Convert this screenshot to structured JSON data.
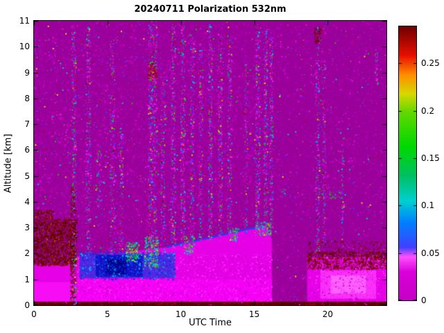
{
  "chart_data": {
    "type": "heatmap",
    "title": "20240711 Polarization 532nm",
    "xlabel": "UTC Time",
    "ylabel": "Altitude [km]",
    "x_range": [
      0,
      24
    ],
    "y_range": [
      0,
      11
    ],
    "x_ticks": [
      0,
      5,
      10,
      15,
      20
    ],
    "x_tick_labels": [
      "0",
      "5",
      "10",
      "15",
      "20"
    ],
    "y_ticks": [
      0,
      1,
      2,
      3,
      4,
      5,
      6,
      7,
      8,
      9,
      10,
      11
    ],
    "y_tick_labels": [
      "0",
      "1",
      "2",
      "3",
      "4",
      "5",
      "6",
      "7",
      "8",
      "9",
      "10",
      "11"
    ],
    "colorbar": {
      "min": 0,
      "max": 0.2889,
      "ticks": [
        0,
        0.05,
        0.1,
        0.15,
        0.2,
        0.25
      ],
      "tick_labels": [
        "0",
        "0.05",
        "0.1",
        "0.15",
        "0.2",
        "0.25"
      ]
    },
    "colormap_stops": [
      [
        0.0,
        "#C400C4"
      ],
      [
        0.03,
        "#DA00DA"
      ],
      [
        0.046,
        "#FF50FF"
      ],
      [
        0.056,
        "#4040FF"
      ],
      [
        0.082,
        "#0080FF"
      ],
      [
        0.105,
        "#00D0D0"
      ],
      [
        0.132,
        "#00C060"
      ],
      [
        0.162,
        "#00D800"
      ],
      [
        0.198,
        "#60D800"
      ],
      [
        0.218,
        "#D8D800"
      ],
      [
        0.238,
        "#FF8C00"
      ],
      [
        0.258,
        "#E81000"
      ],
      [
        0.2889,
        "#6E0000"
      ]
    ],
    "base_color": "#9A009A",
    "seed": 20240711,
    "palettes": {
      "noise": [
        [
          "#AE00AE",
          0.45
        ],
        [
          "#C400C4",
          0.25
        ],
        [
          "#E000E0",
          0.12
        ],
        [
          "#FF00FF",
          0.06
        ],
        [
          "#4040FF",
          0.04
        ],
        [
          "#00C8C8",
          0.025
        ],
        [
          "#00C800",
          0.02
        ],
        [
          "#B00000",
          0.02
        ],
        [
          "#E0E000",
          0.015
        ]
      ],
      "streak": [
        [
          "#D000D0",
          0.3
        ],
        [
          "#FF20FF",
          0.15
        ],
        [
          "#4040FF",
          0.18
        ],
        [
          "#00A0FF",
          0.08
        ],
        [
          "#00D0D0",
          0.08
        ],
        [
          "#00C800",
          0.08
        ],
        [
          "#D0D000",
          0.04
        ],
        [
          "#FF8000",
          0.03
        ],
        [
          "#C00000",
          0.04
        ],
        [
          "#700000",
          0.02
        ]
      ],
      "maroon": [
        [
          "#600000",
          0.45
        ],
        [
          "#7A0A00",
          0.25
        ],
        [
          "#8B1500",
          0.12
        ],
        [
          "#4A0000",
          0.1
        ],
        [
          "#A03000",
          0.05
        ],
        [
          "#C05000",
          0.03
        ]
      ],
      "maroonHot": [
        [
          "#7A0000",
          0.35
        ],
        [
          "#A00000",
          0.25
        ],
        [
          "#D03000",
          0.2
        ],
        [
          "#FF6000",
          0.1
        ],
        [
          "#500000",
          0.1
        ]
      ],
      "cyanGreen": [
        [
          "#00C8E0",
          0.35
        ],
        [
          "#00E0A0",
          0.2
        ],
        [
          "#00C800",
          0.2
        ],
        [
          "#A0E000",
          0.1
        ],
        [
          "#E0E000",
          0.08
        ],
        [
          "#FF8000",
          0.07
        ]
      ],
      "layerTex": [
        [
          "#FF30FF",
          0.5
        ],
        [
          "#D800D8",
          0.3
        ],
        [
          "#C000C0",
          0.2
        ]
      ],
      "blueTex": [
        [
          "#2020E0",
          0.4
        ],
        [
          "#0040FF",
          0.3
        ],
        [
          "#00A0FF",
          0.15
        ],
        [
          "#00D0D0",
          0.15
        ]
      ],
      "strip": [
        [
          "#3A0000",
          0.4
        ],
        [
          "#7A0000",
          0.3
        ],
        [
          "#A00000",
          0.2
        ],
        [
          "#FF00FF",
          0.1
        ]
      ],
      "dots": [
        [
          "#00C800",
          0.3
        ],
        [
          "#00C8C8",
          0.25
        ],
        [
          "#D000D0",
          0.25
        ],
        [
          "#4040FF",
          0.2
        ]
      ]
    },
    "noise": [
      {
        "x0": 0,
        "x1": 24,
        "y0": 0,
        "y1": 11,
        "palette": "noise",
        "count": 5200
      },
      {
        "x0": 2.5,
        "x1": 16.3,
        "y0": 2,
        "y1": 10.9,
        "palette": "noise",
        "count": 5200
      },
      {
        "x0": 0,
        "x1": 2.5,
        "y0": 3.4,
        "y1": 10.5,
        "palette": "noise",
        "count": 900
      },
      {
        "x0": 16.3,
        "x1": 24,
        "y0": 0.2,
        "y1": 10.9,
        "palette": "noise",
        "count": 1500
      }
    ],
    "features": [
      {
        "type": "rect",
        "x0": 0,
        "x1": 2.9,
        "y0": 0,
        "y1": 1.6,
        "color": "#E600E6"
      },
      {
        "type": "rect",
        "x0": 0,
        "x1": 2.9,
        "y0": 0,
        "y1": 0.9,
        "color": "#FA10FA",
        "alpha": 0.8
      },
      {
        "type": "poly",
        "color": "#E600E6",
        "pts": [
          [
            2.9,
            0
          ],
          [
            2.9,
            1.9
          ],
          [
            5,
            1.95
          ],
          [
            7,
            2.1
          ],
          [
            9,
            2.25
          ],
          [
            11,
            2.5
          ],
          [
            13,
            2.75
          ],
          [
            14.5,
            2.95
          ],
          [
            15.8,
            3.05
          ],
          [
            16.2,
            2.55
          ],
          [
            16.2,
            0
          ]
        ]
      },
      {
        "type": "rect",
        "x0": 2.9,
        "x1": 16.2,
        "y0": 0,
        "y1": 1.0,
        "color": "#F800F8",
        "alpha": 0.85
      },
      {
        "type": "speckle",
        "x0": 2.9,
        "x1": 16.2,
        "y0": 0,
        "y1": 2.0,
        "palette": "layerTex",
        "count": 2600
      },
      {
        "type": "rect",
        "x0": 3.1,
        "x1": 9.6,
        "y0": 1.05,
        "y1": 2.0,
        "color": "#3030DC",
        "alpha": 0.8
      },
      {
        "type": "rect",
        "x0": 4.2,
        "x1": 7.4,
        "y0": 1.1,
        "y1": 1.95,
        "color": "#0A0AC0",
        "alpha": 0.85
      },
      {
        "type": "rect",
        "x0": 4.9,
        "x1": 6.3,
        "y0": 1.2,
        "y1": 1.8,
        "color": "#000088",
        "alpha": 0.9
      },
      {
        "type": "speckle",
        "x0": 3.1,
        "x1": 9.6,
        "y0": 1.0,
        "y1": 2.1,
        "palette": "blueTex",
        "count": 900
      },
      {
        "type": "line",
        "color": "#3434E0",
        "width": 3,
        "pts": [
          [
            9,
            2.25
          ],
          [
            11,
            2.5
          ],
          [
            13,
            2.75
          ],
          [
            14.5,
            2.95
          ],
          [
            15.8,
            3.05
          ]
        ]
      },
      {
        "type": "speckle",
        "x0": 6.2,
        "x1": 7.1,
        "y0": 1.7,
        "y1": 2.45,
        "palette": "cyanGreen",
        "count": 230
      },
      {
        "type": "speckle",
        "x0": 7.5,
        "x1": 8.45,
        "y0": 1.5,
        "y1": 2.7,
        "palette": "cyanGreen",
        "count": 280
      },
      {
        "type": "speckle",
        "x0": 10.2,
        "x1": 10.9,
        "y0": 2.0,
        "y1": 2.7,
        "palette": "cyanGreen",
        "count": 90
      },
      {
        "type": "speckle",
        "x0": 13.3,
        "x1": 13.9,
        "y0": 2.5,
        "y1": 3.0,
        "palette": "cyanGreen",
        "count": 70
      },
      {
        "type": "speckle",
        "x0": 15.0,
        "x1": 16.15,
        "y0": 2.7,
        "y1": 3.25,
        "palette": "cyanGreen",
        "count": 130
      },
      {
        "type": "speckle",
        "x0": 0,
        "x1": 2.9,
        "y0": 1.55,
        "y1": 3.35,
        "palette": "maroon",
        "count": 2400
      },
      {
        "type": "speckle",
        "x0": 0,
        "x1": 1.3,
        "y0": 3.35,
        "y1": 3.7,
        "palette": "maroon",
        "count": 140
      },
      {
        "type": "speckle",
        "x0": 2.45,
        "x1": 2.8,
        "y0": 0,
        "y1": 4.6,
        "palette": "maroon",
        "count": 450
      },
      {
        "type": "rect",
        "x0": 18.6,
        "x1": 24,
        "y0": 0,
        "y1": 1.85,
        "color": "#E600E6"
      },
      {
        "type": "rect",
        "x0": 19.5,
        "x1": 23.3,
        "y0": 0.25,
        "y1": 1.35,
        "color": "#FF3CFF",
        "alpha": 0.8
      },
      {
        "type": "rect",
        "x0": 20.2,
        "x1": 22.6,
        "y0": 0.45,
        "y1": 1.15,
        "color": "#FF78FF",
        "alpha": 0.7
      },
      {
        "type": "speckle",
        "x0": 18.6,
        "x1": 24,
        "y0": 0,
        "y1": 1.9,
        "palette": "layerTex",
        "count": 900
      },
      {
        "type": "speckle",
        "x0": 18.6,
        "x1": 24,
        "y0": 1.4,
        "y1": 2.1,
        "palette": "maroon",
        "count": 1200
      },
      {
        "type": "speckle",
        "x0": 18.6,
        "x1": 24,
        "y0": 2.1,
        "y1": 2.5,
        "palette": "maroon",
        "count": 160
      },
      {
        "type": "speckle",
        "x0": 19.05,
        "x1": 19.5,
        "y0": 10.15,
        "y1": 10.75,
        "palette": "maroon",
        "count": 110
      },
      {
        "type": "speckle",
        "x0": 7.75,
        "x1": 8.35,
        "y0": 8.75,
        "y1": 9.45,
        "palette": "maroonHot",
        "count": 170
      },
      {
        "type": "rect",
        "x0": 0,
        "x1": 24,
        "y0": 0,
        "y1": 0.14,
        "color": "#5A0000"
      },
      {
        "type": "speckle",
        "x0": 0,
        "x1": 24,
        "y0": 0,
        "y1": 0.14,
        "palette": "strip",
        "count": 600
      },
      {
        "type": "speckle",
        "x0": 16.7,
        "x1": 17.15,
        "y0": 4.15,
        "y1": 4.5,
        "palette": "dots",
        "count": 25
      },
      {
        "type": "speckle",
        "x0": 19.3,
        "x1": 21.2,
        "y0": 4.15,
        "y1": 4.45,
        "palette": "dots",
        "count": 70
      }
    ],
    "streaks": [
      {
        "x": 2.55,
        "w": 0.3,
        "y0": 0,
        "y1": 10.6,
        "count": 500
      },
      {
        "x": 3.5,
        "w": 0.35,
        "y0": 1.9,
        "y1": 10.8,
        "count": 420
      },
      {
        "x": 4.25,
        "w": 0.3,
        "y0": 3.8,
        "y1": 6.0,
        "count": 120
      },
      {
        "x": 5.15,
        "w": 0.3,
        "y0": 1.9,
        "y1": 10.4,
        "count": 300
      },
      {
        "x": 5.8,
        "w": 0.25,
        "y0": 2.0,
        "y1": 7.0,
        "count": 150
      },
      {
        "x": 7.75,
        "w": 0.6,
        "y0": 2.2,
        "y1": 10.9,
        "count": 850
      },
      {
        "x": 8.6,
        "w": 0.3,
        "y0": 2.0,
        "y1": 9.0,
        "count": 250
      },
      {
        "x": 9.3,
        "w": 0.3,
        "y0": 2.2,
        "y1": 10.9,
        "count": 430
      },
      {
        "x": 9.95,
        "w": 0.3,
        "y0": 2.3,
        "y1": 10.9,
        "count": 400
      },
      {
        "x": 10.6,
        "w": 0.28,
        "y0": 2.4,
        "y1": 10.5,
        "count": 330
      },
      {
        "x": 11.2,
        "w": 0.25,
        "y0": 2.5,
        "y1": 10.2,
        "count": 280
      },
      {
        "x": 11.85,
        "w": 0.28,
        "y0": 2.5,
        "y1": 10.9,
        "count": 400
      },
      {
        "x": 12.5,
        "w": 0.3,
        "y0": 2.6,
        "y1": 10.5,
        "count": 360
      },
      {
        "x": 13.15,
        "w": 0.28,
        "y0": 2.7,
        "y1": 10.3,
        "count": 300
      },
      {
        "x": 14.3,
        "w": 0.22,
        "y0": 2.8,
        "y1": 9.5,
        "count": 180
      },
      {
        "x": 15.05,
        "w": 0.3,
        "y0": 2.9,
        "y1": 10.9,
        "count": 420
      },
      {
        "x": 15.62,
        "w": 0.25,
        "y0": 3.0,
        "y1": 10.7,
        "count": 380
      },
      {
        "x": 16.02,
        "w": 0.22,
        "y0": 3.0,
        "y1": 10.4,
        "count": 300
      },
      {
        "x": 19.15,
        "w": 0.28,
        "y0": 2.1,
        "y1": 10.8,
        "count": 320
      },
      {
        "x": 19.62,
        "w": 0.22,
        "y0": 2.1,
        "y1": 9.5,
        "count": 220
      },
      {
        "x": 20.9,
        "w": 0.18,
        "y0": 2.2,
        "y1": 6.5,
        "count": 90
      },
      {
        "x": 23.2,
        "w": 0.2,
        "y0": 8.5,
        "y1": 9.8,
        "count": 70
      }
    ]
  }
}
